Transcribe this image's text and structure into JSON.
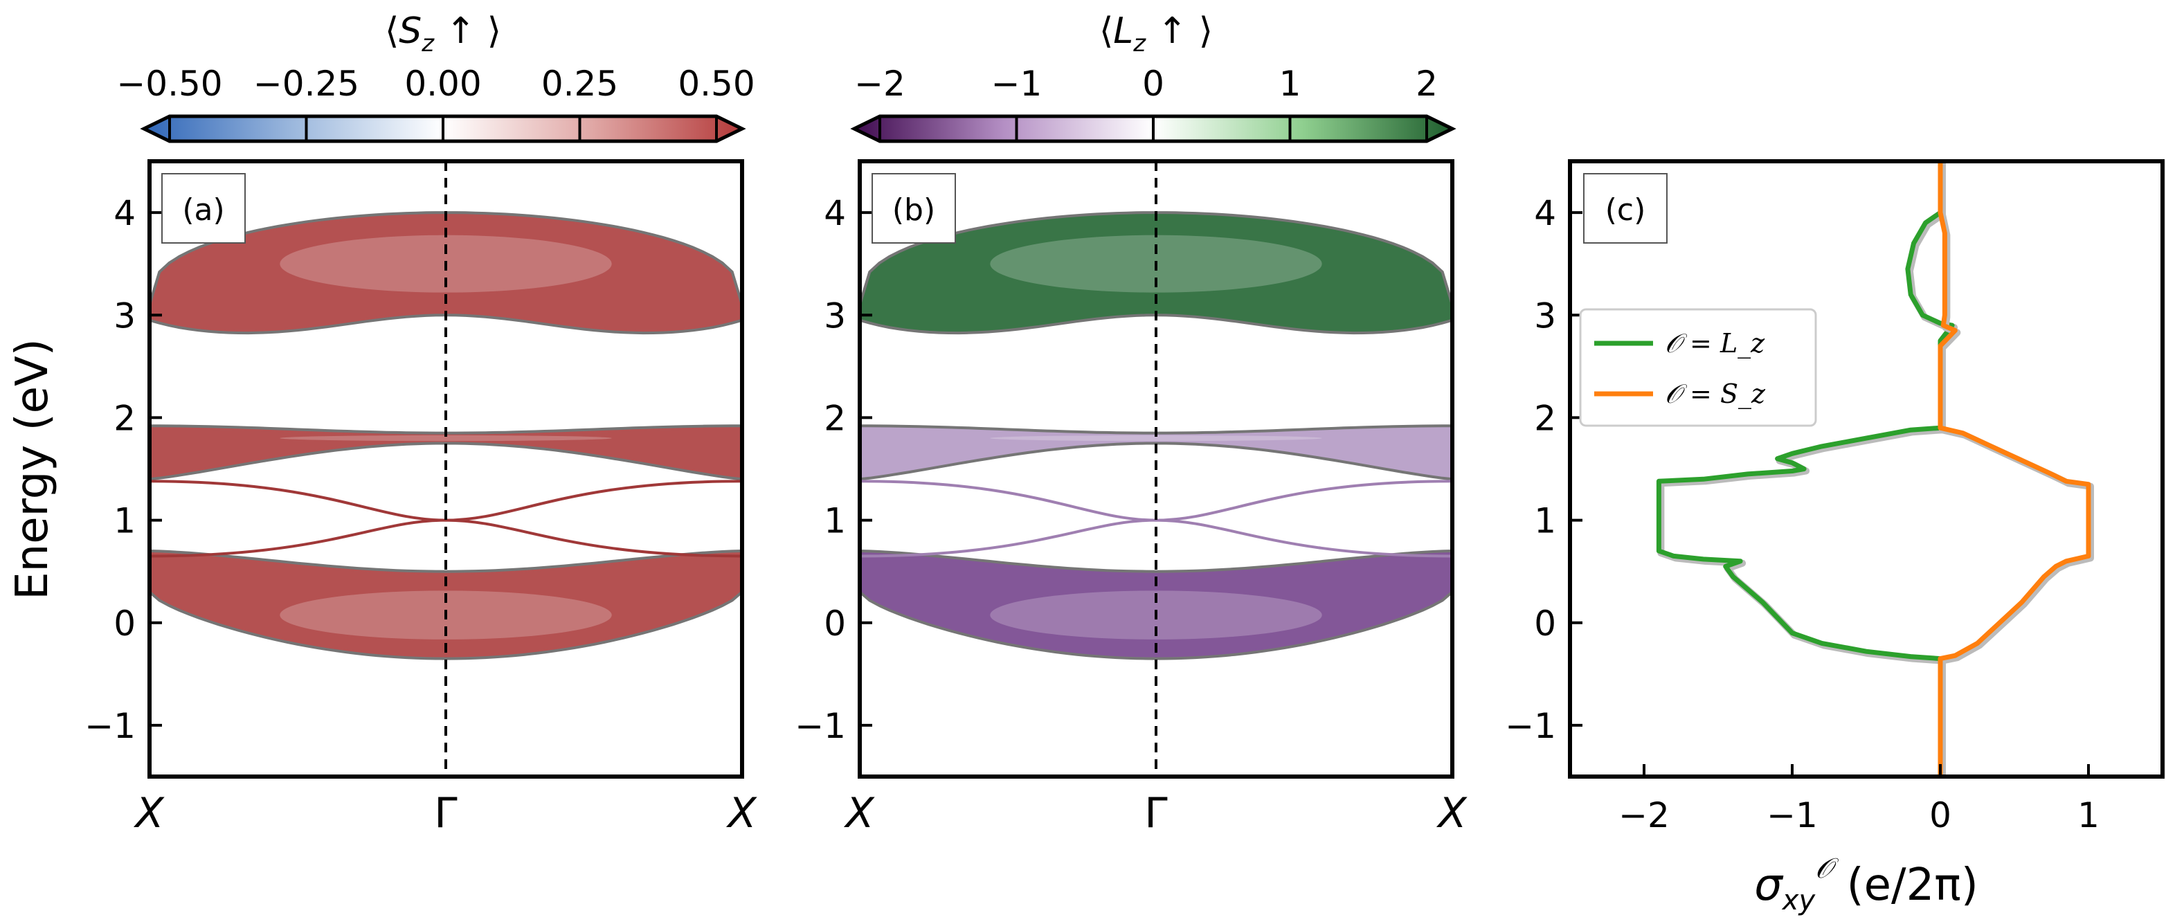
{
  "colorbars": [
    {
      "title": "⟨S_z ↑ ⟩",
      "title_parts": {
        "open": "⟨",
        "sym": "S",
        "sub": "z",
        "close": " ↑ ⟩"
      },
      "ticks": [
        "−0.50",
        "−0.25",
        "0.00",
        "0.25",
        "0.50"
      ],
      "tick_values": [
        -0.5,
        -0.25,
        0.0,
        0.25,
        0.5
      ],
      "range": [
        -0.5,
        0.5
      ],
      "colors": [
        "#2f66b8",
        "#9cb8dd",
        "#ffffff",
        "#e0a7a5",
        "#b43a3a"
      ]
    },
    {
      "title": "⟨L_z ↑ ⟩",
      "title_parts": {
        "open": "⟨",
        "sym": "L",
        "sub": "z",
        "close": " ↑ ⟩"
      },
      "ticks": [
        "−2",
        "−1",
        "0",
        "1",
        "2"
      ],
      "tick_values": [
        -2,
        -1,
        0,
        1,
        2
      ],
      "range": [
        -2,
        2
      ],
      "colors": [
        "#3f0a4f",
        "#b48fc4",
        "#ffffff",
        "#8fcf8f",
        "#1f5e2e"
      ]
    }
  ],
  "chart_data": [
    {
      "type": "band_structure",
      "panel_label": "(a)",
      "ylabel": "Energy (eV)",
      "ylim": [
        -1.5,
        4.5
      ],
      "yticks": [
        -1,
        0,
        1,
        2,
        3,
        4
      ],
      "ytick_labels": [
        "−1",
        "0",
        "1",
        "2",
        "3",
        "4"
      ],
      "kpath_labels": [
        "X",
        "Γ",
        "X"
      ],
      "colored_by": "⟨S_z ↑ ⟩",
      "bands": [
        {
          "name": "upper",
          "top_edge": 4.0,
          "top_center": 4.0,
          "bottom_edge": 2.95,
          "bottom_center": 3.0,
          "edge_max": 3.1,
          "edge_min": 2.95,
          "color": "#b04848"
        },
        {
          "name": "middle",
          "top_center": 1.85,
          "top_edge": 1.92,
          "bottom_center": 1.75,
          "bottom_edge": 1.4,
          "color": "#b04848"
        },
        {
          "name": "lower",
          "top_center": 0.5,
          "top_edge": 0.7,
          "bottom_center": -0.35,
          "bottom_edge": 0.3,
          "color": "#b04848"
        }
      ],
      "edge_states": {
        "endpoints": [
          0.65,
          1.38
        ],
        "crossing": 1.0,
        "color": "#a03838"
      }
    },
    {
      "type": "band_structure",
      "panel_label": "(b)",
      "ylim": [
        -1.5,
        4.5
      ],
      "yticks": [
        -1,
        0,
        1,
        2,
        3,
        4
      ],
      "ytick_labels": [
        "−1",
        "0",
        "1",
        "2",
        "3",
        "4"
      ],
      "kpath_labels": [
        "X",
        "Γ",
        "X"
      ],
      "colored_by": "⟨L_z ↑ ⟩",
      "bands": [
        {
          "name": "upper",
          "top_edge": 4.0,
          "top_center": 4.0,
          "bottom_edge": 2.95,
          "bottom_center": 3.0,
          "edge_max": 3.1,
          "edge_min": 2.95,
          "color": "#2f6e3e"
        },
        {
          "name": "middle",
          "top_center": 1.85,
          "top_edge": 1.92,
          "bottom_center": 1.75,
          "bottom_edge": 1.4,
          "color": "#b8a0c8"
        },
        {
          "name": "lower",
          "top_center": 0.5,
          "top_edge": 0.7,
          "bottom_center": -0.35,
          "bottom_edge": 0.3,
          "color": "#7d4f93"
        }
      ],
      "edge_states": {
        "endpoints": [
          0.65,
          1.38
        ],
        "crossing": 1.0,
        "color": "#9f7fb1"
      }
    },
    {
      "type": "line",
      "panel_label": "(c)",
      "xlabel": "σ_xy^O (e/2π)",
      "xlabel_parts": {
        "sigma": "σ",
        "sub": "xy",
        "sup": "𝒪",
        "unit": " (e/2π)"
      },
      "xlim": [
        -2.5,
        1.5
      ],
      "ylim": [
        -1.5,
        4.5
      ],
      "xticks": [
        -2,
        -1,
        0,
        1
      ],
      "xtick_labels": [
        "−2",
        "−1",
        "0",
        "1"
      ],
      "yticks": [
        -1,
        0,
        1,
        2,
        3,
        4
      ],
      "ytick_labels": [
        "−1",
        "0",
        "1",
        "2",
        "3",
        "4"
      ],
      "legend": {
        "placement": "center-left",
        "entries": [
          "𝒪 = L_z",
          "𝒪 = S_z"
        ]
      },
      "series": [
        {
          "name": "𝒪 = L_z",
          "color": "#2ca02c",
          "points": [
            [
              0,
              -1.5
            ],
            [
              0,
              -0.35
            ],
            [
              -0.2,
              -0.33
            ],
            [
              -0.5,
              -0.28
            ],
            [
              -0.8,
              -0.2
            ],
            [
              -1.0,
              -0.1
            ],
            [
              -1.2,
              0.2
            ],
            [
              -1.4,
              0.45
            ],
            [
              -1.45,
              0.55
            ],
            [
              -1.35,
              0.6
            ],
            [
              -1.6,
              0.62
            ],
            [
              -1.8,
              0.65
            ],
            [
              -1.9,
              0.7
            ],
            [
              -1.9,
              1.0
            ],
            [
              -1.9,
              1.38
            ],
            [
              -1.6,
              1.4
            ],
            [
              -1.3,
              1.45
            ],
            [
              -1.0,
              1.48
            ],
            [
              -0.92,
              1.5
            ],
            [
              -1.0,
              1.56
            ],
            [
              -1.1,
              1.6
            ],
            [
              -1.0,
              1.65
            ],
            [
              -0.8,
              1.72
            ],
            [
              -0.5,
              1.8
            ],
            [
              -0.2,
              1.88
            ],
            [
              0,
              1.9
            ],
            [
              0,
              2.5
            ],
            [
              0,
              2.75
            ],
            [
              0.08,
              2.9
            ],
            [
              0,
              2.92
            ],
            [
              -0.12,
              3.0
            ],
            [
              -0.2,
              3.2
            ],
            [
              -0.22,
              3.45
            ],
            [
              -0.18,
              3.7
            ],
            [
              -0.1,
              3.9
            ],
            [
              0,
              4.0
            ]
          ]
        },
        {
          "name": "𝒪 = S_z",
          "color": "#ff7f0e",
          "points": [
            [
              0,
              -1.5
            ],
            [
              0,
              -0.35
            ],
            [
              0.1,
              -0.32
            ],
            [
              0.25,
              -0.2
            ],
            [
              0.4,
              0.0
            ],
            [
              0.55,
              0.2
            ],
            [
              0.7,
              0.45
            ],
            [
              0.78,
              0.55
            ],
            [
              0.85,
              0.6
            ],
            [
              1.0,
              0.65
            ],
            [
              1.0,
              1.0
            ],
            [
              1.0,
              1.35
            ],
            [
              0.85,
              1.38
            ],
            [
              0.75,
              1.45
            ],
            [
              0.6,
              1.55
            ],
            [
              0.45,
              1.65
            ],
            [
              0.3,
              1.75
            ],
            [
              0.15,
              1.85
            ],
            [
              0,
              1.9
            ],
            [
              0,
              2.7
            ],
            [
              0.1,
              2.85
            ],
            [
              0.02,
              2.9
            ],
            [
              0.03,
              3.0
            ],
            [
              0.03,
              3.8
            ],
            [
              0,
              4.0
            ],
            [
              0,
              4.5
            ]
          ]
        }
      ]
    }
  ]
}
